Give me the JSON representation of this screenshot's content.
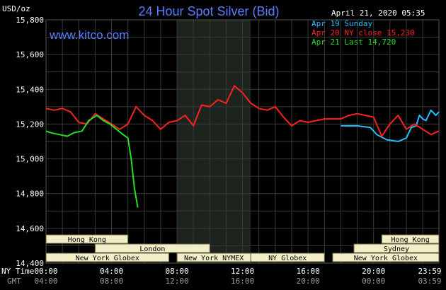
{
  "chart_data": {
    "type": "line",
    "title": "24 Hour Spot Silver (Bid)",
    "website": "www.kitco.com",
    "date_time": "April 21, 2020 05:35",
    "yunit": "USD/oz",
    "ylim": [
      14.4,
      15.8
    ],
    "yticks": [
      "15,800",
      "15,600",
      "15,400",
      "15,200",
      "15,000",
      "14,800",
      "14,600",
      "14,400"
    ],
    "ny_time_label": "NY Time",
    "gmt_label": "GMT",
    "xticks_ny": [
      "00:00",
      "04:00",
      "08:00",
      "12:00",
      "16:00",
      "20:00",
      "23:59"
    ],
    "xticks_gmt": [
      "04:00",
      "08:00",
      "12:00",
      "16:00",
      "20:00",
      "00:00",
      "03:59"
    ],
    "grid": true,
    "legend_position": "top-right",
    "series": [
      {
        "name": "Apr 19 Sunday",
        "color": "#22c0ff",
        "x": [
          18.0,
          19.0,
          19.8,
          20.2,
          20.8,
          21.5,
          22.0,
          22.3,
          22.6,
          22.8,
          23.0,
          23.2,
          23.5,
          23.8,
          23.99
        ],
        "y": [
          15.19,
          15.19,
          15.18,
          15.14,
          15.11,
          15.1,
          15.12,
          15.18,
          15.19,
          15.25,
          15.23,
          15.22,
          15.28,
          15.25,
          15.27
        ]
      },
      {
        "name": "Apr 20 NY close 15,230",
        "color": "#ff2020",
        "x": [
          0.0,
          0.5,
          1.0,
          1.5,
          2.0,
          2.5,
          3.0,
          3.5,
          4.0,
          4.5,
          5.0,
          5.5,
          6.0,
          6.5,
          7.0,
          7.5,
          8.0,
          8.5,
          9.0,
          9.5,
          10.0,
          10.5,
          11.0,
          11.5,
          12.0,
          12.5,
          13.0,
          13.5,
          14.0,
          14.5,
          15.0,
          15.5,
          16.0,
          16.5,
          17.0,
          17.5,
          18.0,
          18.5,
          19.0,
          19.5,
          20.0,
          20.5,
          21.0,
          21.5,
          22.0,
          22.5,
          23.0,
          23.5,
          23.99
        ],
        "y": [
          15.29,
          15.28,
          15.29,
          15.27,
          15.21,
          15.2,
          15.26,
          15.23,
          15.2,
          15.17,
          15.2,
          15.3,
          15.25,
          15.22,
          15.17,
          15.21,
          15.22,
          15.25,
          15.19,
          15.31,
          15.3,
          15.34,
          15.32,
          15.42,
          15.38,
          15.32,
          15.29,
          15.28,
          15.3,
          15.24,
          15.19,
          15.22,
          15.21,
          15.22,
          15.23,
          15.23,
          15.23,
          15.25,
          15.26,
          15.25,
          15.24,
          15.13,
          15.2,
          15.25,
          15.17,
          15.2,
          15.17,
          15.14,
          15.16
        ]
      },
      {
        "name": "Apr 21 Last 14,720",
        "color": "#22e022",
        "x": [
          0.0,
          0.3,
          0.8,
          1.3,
          1.7,
          2.2,
          2.6,
          3.1,
          3.5,
          3.9,
          4.3,
          4.7,
          5.0,
          5.2,
          5.4,
          5.6
        ],
        "y": [
          15.16,
          15.15,
          15.14,
          15.13,
          15.15,
          15.16,
          15.22,
          15.25,
          15.22,
          15.2,
          15.17,
          15.14,
          15.12,
          15.0,
          14.83,
          14.72
        ]
      }
    ],
    "session_bars": [
      {
        "label": "Hong Kong",
        "row": 1,
        "start": 0.0,
        "end": 5.0
      },
      {
        "label": "London",
        "row": 2,
        "start": 3.0,
        "end": 10.0
      },
      {
        "label": "New York Globex",
        "row": 3,
        "start": 0.0,
        "end": 7.5
      },
      {
        "label": "New York NYMEX",
        "row": 3,
        "start": 8.0,
        "end": 12.5
      },
      {
        "label": "NY Globex",
        "row": 3,
        "start": 12.5,
        "end": 17.0
      },
      {
        "label": "Hong Kong",
        "row": 1,
        "start": 20.5,
        "end": 23.99
      },
      {
        "label": "Sydney",
        "row": 2,
        "start": 18.8,
        "end": 23.99
      },
      {
        "label": "New York Globex",
        "row": 3,
        "start": 17.5,
        "end": 23.99
      }
    ],
    "highlight_span": [
      8.0,
      12.5
    ]
  }
}
